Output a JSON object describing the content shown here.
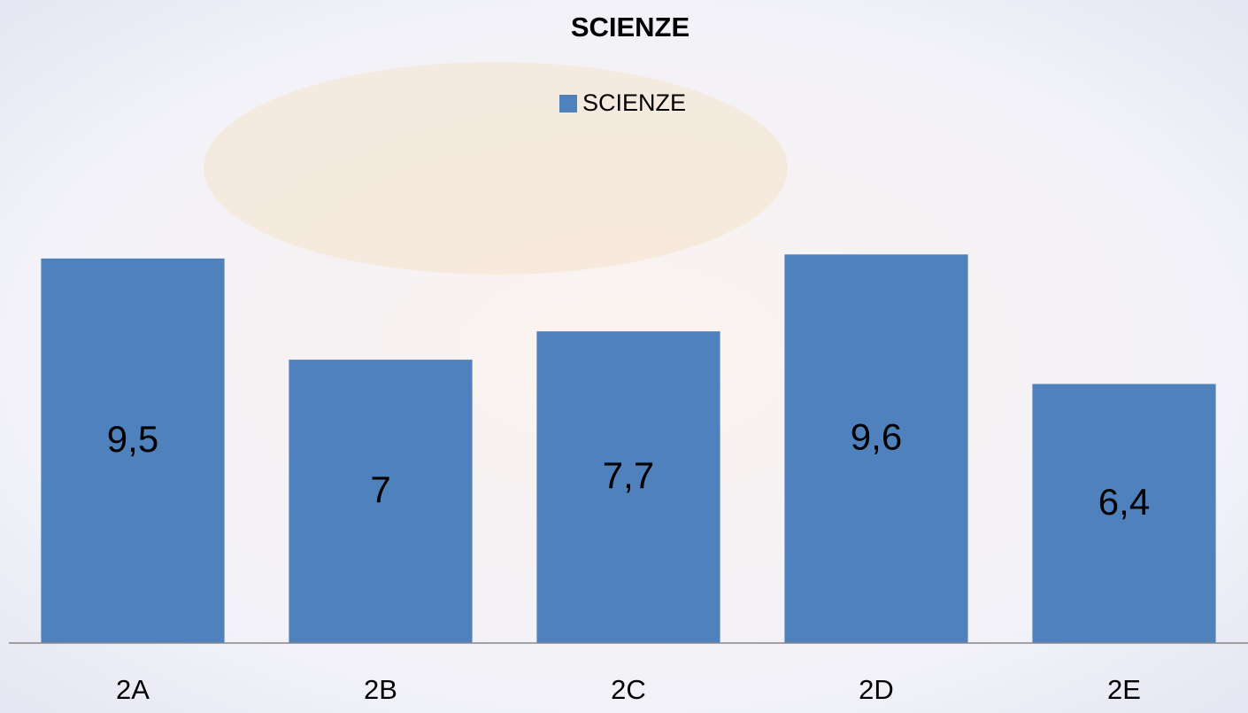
{
  "chart_data": {
    "type": "bar",
    "title": "SCIENZE",
    "categories": [
      "2A",
      "2B",
      "2C",
      "2D",
      "2E"
    ],
    "series": [
      {
        "name": "SCIENZE",
        "color": "#4f81bd",
        "values": [
          9.5,
          7,
          7.7,
          9.6,
          6.4
        ],
        "value_labels": [
          "9,5",
          "7",
          "7,7",
          "9,6",
          "6,4"
        ]
      }
    ],
    "ylim": [
      0,
      10
    ],
    "legend": "top"
  }
}
